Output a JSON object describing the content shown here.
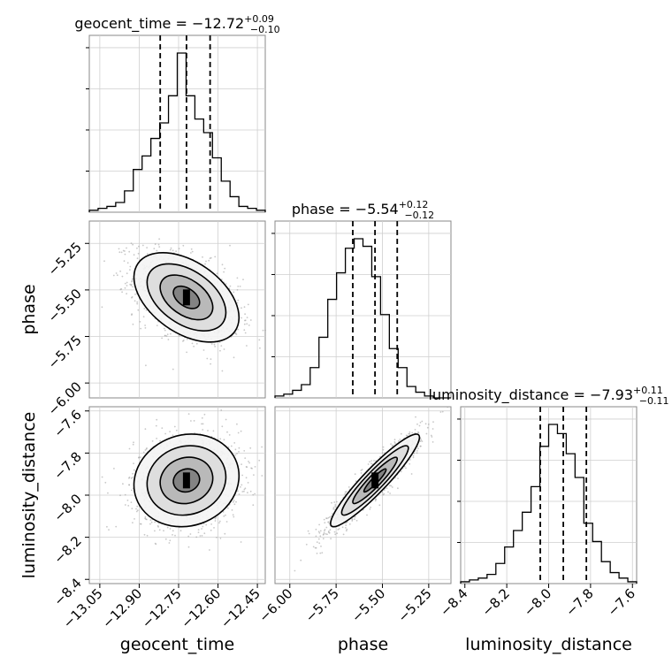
{
  "chart_data": {
    "type": "corner",
    "parameters": [
      "geocent_time",
      "phase",
      "luminosity_distance"
    ],
    "axis_labels": {
      "x": [
        "geocent_time",
        "phase",
        "luminosity_distance"
      ],
      "y": [
        "",
        "phase",
        "luminosity_distance"
      ]
    },
    "titles": [
      {
        "main": "geocent_time = −12.72",
        "plus": "+0.09",
        "minus": "−0.10"
      },
      {
        "main": "phase = −5.54",
        "plus": "+0.12",
        "minus": "−0.12"
      },
      {
        "main": "luminosity_distance = −7.93",
        "plus": "+0.11",
        "minus": "−0.11"
      }
    ],
    "ranges": [
      [
        -13.09,
        -12.42
      ],
      [
        -6.08,
        -5.13
      ],
      [
        -8.42,
        -7.58
      ]
    ],
    "ticks": [
      {
        "values": [
          -13.05,
          -12.9,
          -12.75,
          -12.6,
          -12.45
        ],
        "labels": [
          "−13.05",
          "−12.90",
          "−12.75",
          "−12.60",
          "−12.45"
        ]
      },
      {
        "values": [
          -6.0,
          -5.75,
          -5.5,
          -5.25
        ],
        "labels": [
          "−6.00",
          "−5.75",
          "−5.50",
          "−5.25"
        ]
      },
      {
        "values": [
          -8.4,
          -8.2,
          -8.0,
          -7.8,
          -7.6
        ],
        "labels": [
          "−8.4",
          "−8.2",
          "−8.0",
          "−7.8",
          "−7.6"
        ]
      }
    ],
    "quantiles": [
      [
        -12.82,
        -12.72,
        -12.63
      ],
      [
        -5.66,
        -5.54,
        -5.42
      ],
      [
        -8.04,
        -7.93,
        -7.82
      ]
    ],
    "histograms": [
      {
        "edges_start": -13.09,
        "bin_width": 0.0335,
        "counts": [
          1,
          2,
          3,
          5,
          11,
          22,
          29,
          38,
          46,
          60,
          82,
          60,
          48,
          41,
          28,
          16,
          8,
          3,
          2,
          1
        ]
      },
      {
        "edges_start": -6.08,
        "bin_width": 0.0475,
        "counts": [
          1,
          2,
          4,
          7,
          16,
          32,
          52,
          66,
          79,
          84,
          80,
          64,
          44,
          26,
          16,
          6,
          3,
          1,
          0,
          0
        ]
      },
      {
        "edges_start": -8.42,
        "bin_width": 0.042,
        "counts": [
          1,
          2,
          3,
          5,
          11,
          20,
          29,
          39,
          53,
          75,
          87,
          82,
          71,
          58,
          33,
          23,
          12,
          6,
          3,
          1
        ]
      }
    ],
    "correlations": {
      "phase_vs_geocent_time": -0.45,
      "luminosity_distance_vs_geocent_time": 0.1,
      "luminosity_distance_vs_phase": 0.93
    },
    "sigmas": [
      0.1,
      0.12,
      0.11
    ],
    "means": [
      -12.72,
      -5.54,
      -7.93
    ],
    "grid": true
  }
}
